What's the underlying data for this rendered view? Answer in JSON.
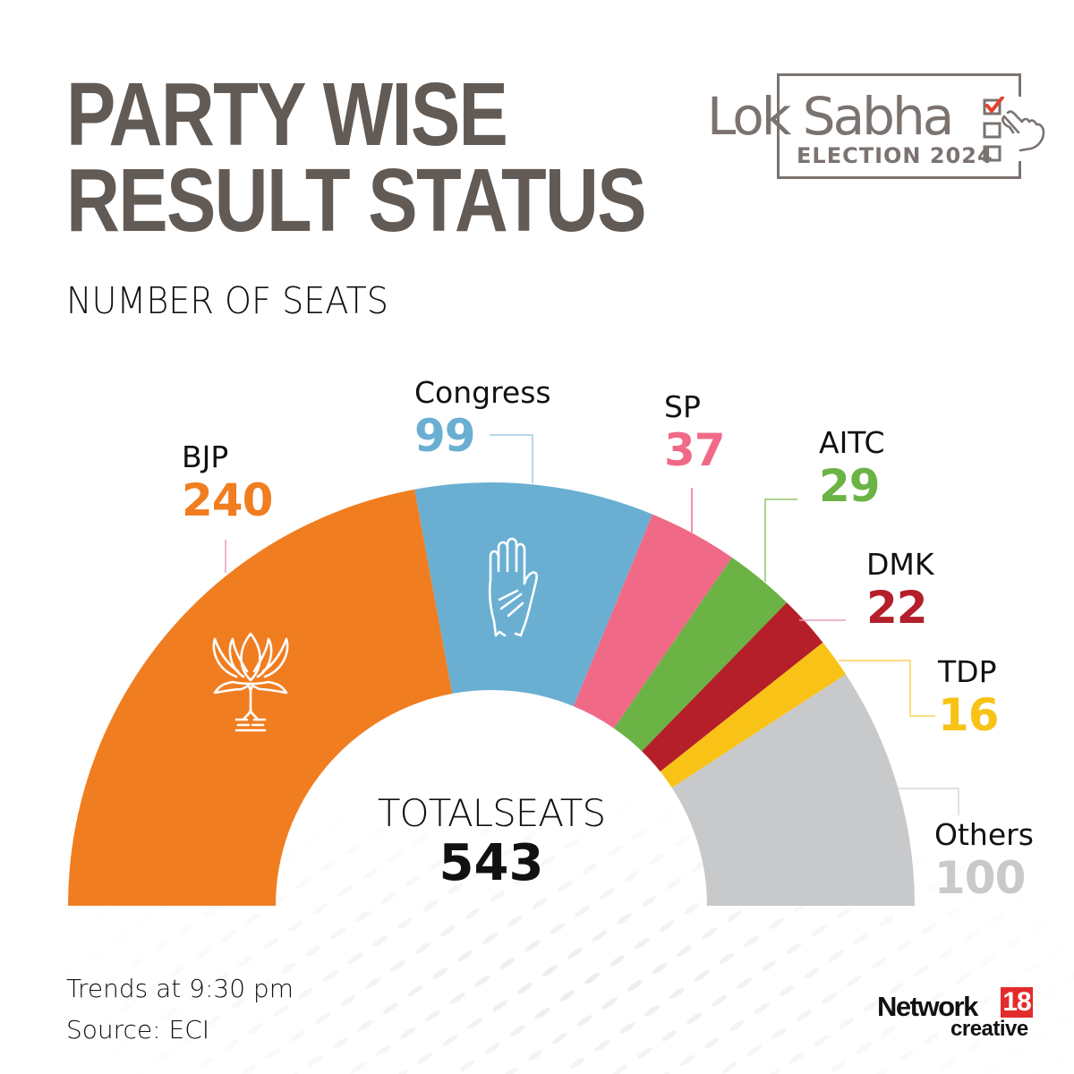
{
  "header": {
    "title_line1": "PARTY WISE",
    "title_line2": "RESULT STATUS",
    "subtitle": "NUMBER OF SEATS"
  },
  "logo": {
    "title": "Lok Sabha",
    "subtitle": "ELECTION 2024",
    "icon": "ballot-checkbox-hand-icon",
    "check_color": "#e4412d"
  },
  "total": {
    "label": "TOTALSEATS",
    "value": "543"
  },
  "footnote": {
    "trends": "Trends at 9:30 pm",
    "source": "Source: ECI"
  },
  "brand": {
    "name": "Network",
    "number": "18",
    "tagline": "creative"
  },
  "parties": [
    {
      "name": "BJP",
      "seats": "240",
      "color": "#f07d20",
      "symbol": "lotus-icon"
    },
    {
      "name": "Congress",
      "seats": "99",
      "color": "#6aafd2",
      "symbol": "hand-icon"
    },
    {
      "name": "SP",
      "seats": "37",
      "color": "#f06a87"
    },
    {
      "name": "AITC",
      "seats": "29",
      "color": "#6ab344"
    },
    {
      "name": "DMK",
      "seats": "22",
      "color": "#b41f29"
    },
    {
      "name": "TDP",
      "seats": "16",
      "color": "#f8c316"
    },
    {
      "name": "Others",
      "seats": "100",
      "color": "#c8c9cb",
      "label_color": "#c8c9cb"
    }
  ],
  "chart_data": {
    "type": "pie",
    "subtype": "semicircle-donut",
    "title": "PARTY WISE RESULT STATUS",
    "subtitle": "NUMBER OF SEATS",
    "categories": [
      "BJP",
      "Congress",
      "SP",
      "AITC",
      "DMK",
      "TDP",
      "Others"
    ],
    "values": [
      240,
      99,
      37,
      29,
      22,
      16,
      100
    ],
    "colors": [
      "#f07d20",
      "#6aafd2",
      "#f06a87",
      "#6ab344",
      "#b41f29",
      "#f8c316",
      "#c8c9cb"
    ],
    "total": 543,
    "center_label": "TOTALSEATS 543",
    "annotations": [
      "Trends at 9:30 pm",
      "Source: ECI"
    ],
    "legend": "none (direct labels with leader lines)"
  }
}
